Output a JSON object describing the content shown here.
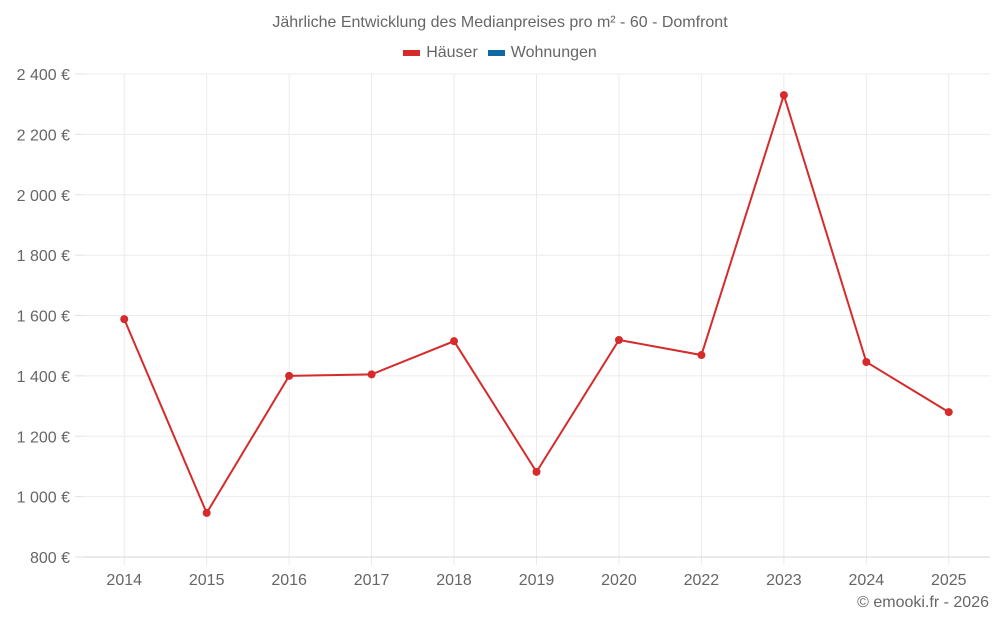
{
  "chart_data": {
    "type": "line",
    "title": "Jährliche Entwicklung des Medianpreises pro m² - 60 - Domfront",
    "xlabel": "",
    "ylabel": "",
    "categories": [
      "2014",
      "2015",
      "2016",
      "2017",
      "2018",
      "2019",
      "2020",
      "2022",
      "2023",
      "2024",
      "2025"
    ],
    "series": [
      {
        "name": "Häuser",
        "color": "#d52b2b",
        "values": [
          1588,
          946,
          1400,
          1405,
          1515,
          1082,
          1519,
          1469,
          2330,
          1446,
          1280
        ]
      },
      {
        "name": "Wohnungen",
        "color": "#0f6aa3",
        "values": []
      }
    ],
    "ylim": [
      800,
      2400
    ],
    "yticks": [
      800,
      1000,
      1200,
      1400,
      1600,
      1800,
      2000,
      2200,
      2400
    ],
    "ytick_labels": [
      "800 €",
      "1 000 €",
      "1 200 €",
      "1 400 €",
      "1 600 €",
      "1 800 €",
      "2 000 €",
      "2 200 €",
      "2 400 €"
    ],
    "grid": true,
    "legend_position": "top"
  },
  "legend": {
    "items": [
      {
        "label": "Häuser",
        "color": "#d52b2b"
      },
      {
        "label": "Wohnungen",
        "color": "#0f6aa3"
      }
    ]
  },
  "credit": "© emooki.fr - 2026"
}
